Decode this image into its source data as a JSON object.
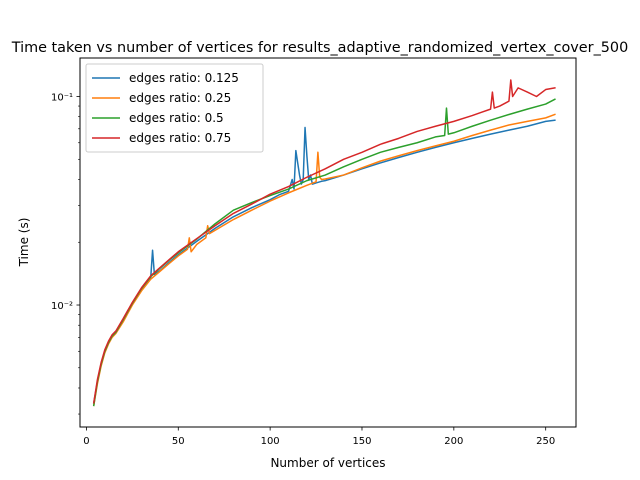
{
  "chart_data": {
    "type": "line",
    "title": "Time taken vs number of vertices for results_adaptive_randomized_vertex_cover_500",
    "xlabel": "Number of vertices",
    "ylabel": "Time (s)",
    "xlim": [
      -3.5,
      266.5
    ],
    "ylim": [
      0.0026,
      0.153
    ],
    "yscale": "log",
    "xticks": [
      0,
      50,
      100,
      150,
      200,
      250
    ],
    "xtick_labels": [
      "0",
      "50",
      "100",
      "150",
      "200",
      "250"
    ],
    "yticks_major": [
      0.01,
      0.1
    ],
    "ytick_labels": [
      "10⁻²",
      "10⁻¹"
    ],
    "yticks_minor": [
      0.003,
      0.004,
      0.005,
      0.006,
      0.007,
      0.008,
      0.009,
      0.02,
      0.03,
      0.04,
      0.05,
      0.06,
      0.07,
      0.08,
      0.09
    ],
    "grid": false,
    "legend_position": "upper left",
    "series": [
      {
        "name": "edges ratio: 0.125",
        "color": "#1f77b4",
        "x": [
          4,
          6,
          8,
          10,
          12,
          14,
          16,
          20,
          25,
          30,
          35,
          36,
          37,
          40,
          45,
          50,
          60,
          70,
          80,
          90,
          100,
          105,
          110,
          112,
          113,
          114,
          116,
          117,
          118,
          119,
          120,
          121,
          122,
          123,
          125,
          128,
          130,
          140,
          150,
          160,
          170,
          180,
          190,
          200,
          210,
          220,
          230,
          240,
          250,
          255
        ],
        "y": [
          0.0034,
          0.0043,
          0.0052,
          0.006,
          0.0066,
          0.0071,
          0.0074,
          0.0084,
          0.0101,
          0.0118,
          0.0135,
          0.0183,
          0.014,
          0.0146,
          0.016,
          0.0174,
          0.0202,
          0.0233,
          0.0265,
          0.0293,
          0.032,
          0.0338,
          0.0351,
          0.04,
          0.036,
          0.055,
          0.042,
          0.038,
          0.04,
          0.071,
          0.052,
          0.04,
          0.042,
          0.038,
          0.0385,
          0.0392,
          0.0395,
          0.042,
          0.045,
          0.048,
          0.051,
          0.054,
          0.057,
          0.06,
          0.063,
          0.066,
          0.069,
          0.072,
          0.076,
          0.077
        ]
      },
      {
        "name": "edges ratio: 0.25",
        "color": "#ff7f0e",
        "x": [
          4,
          6,
          8,
          10,
          12,
          14,
          16,
          20,
          25,
          30,
          35,
          40,
          45,
          50,
          55,
          56,
          57,
          60,
          65,
          66,
          67,
          70,
          80,
          90,
          100,
          110,
          120,
          125,
          126,
          127,
          128,
          130,
          140,
          150,
          160,
          170,
          180,
          190,
          200,
          210,
          220,
          230,
          240,
          250,
          255
        ],
        "y": [
          0.0033,
          0.0042,
          0.0051,
          0.0059,
          0.0065,
          0.007,
          0.0073,
          0.0083,
          0.01,
          0.0117,
          0.0133,
          0.0145,
          0.0158,
          0.0172,
          0.0185,
          0.021,
          0.018,
          0.0195,
          0.021,
          0.024,
          0.022,
          0.0228,
          0.0257,
          0.0285,
          0.0315,
          0.0345,
          0.0375,
          0.039,
          0.054,
          0.041,
          0.04,
          0.0402,
          0.042,
          0.0455,
          0.049,
          0.052,
          0.055,
          0.058,
          0.061,
          0.065,
          0.069,
          0.073,
          0.076,
          0.079,
          0.082
        ]
      },
      {
        "name": "edges ratio: 0.5",
        "color": "#2ca02c",
        "x": [
          4,
          6,
          8,
          10,
          12,
          14,
          16,
          20,
          25,
          30,
          35,
          40,
          45,
          50,
          60,
          70,
          80,
          90,
          100,
          110,
          120,
          130,
          140,
          150,
          160,
          170,
          180,
          190,
          195,
          196,
          197,
          200,
          210,
          220,
          230,
          240,
          250,
          255
        ],
        "y": [
          0.0033,
          0.0043,
          0.0052,
          0.006,
          0.0066,
          0.0071,
          0.0074,
          0.0085,
          0.0102,
          0.012,
          0.0137,
          0.015,
          0.0164,
          0.0178,
          0.0207,
          0.0245,
          0.0285,
          0.031,
          0.0335,
          0.036,
          0.0395,
          0.042,
          0.046,
          0.05,
          0.054,
          0.057,
          0.06,
          0.064,
          0.065,
          0.088,
          0.066,
          0.067,
          0.072,
          0.077,
          0.082,
          0.087,
          0.092,
          0.097
        ]
      },
      {
        "name": "edges ratio: 0.75",
        "color": "#d62728",
        "x": [
          4,
          6,
          8,
          10,
          12,
          14,
          16,
          20,
          25,
          30,
          35,
          40,
          45,
          50,
          60,
          70,
          80,
          90,
          100,
          110,
          120,
          130,
          140,
          150,
          160,
          170,
          180,
          190,
          200,
          210,
          215,
          220,
          221,
          222,
          225,
          230,
          231,
          232,
          235,
          240,
          245,
          250,
          255
        ],
        "y": [
          0.0034,
          0.0044,
          0.0053,
          0.0061,
          0.0067,
          0.0072,
          0.0075,
          0.0086,
          0.0103,
          0.0121,
          0.0138,
          0.0151,
          0.0165,
          0.018,
          0.0208,
          0.024,
          0.0275,
          0.0305,
          0.034,
          0.037,
          0.041,
          0.045,
          0.05,
          0.054,
          0.059,
          0.063,
          0.068,
          0.072,
          0.076,
          0.081,
          0.084,
          0.087,
          0.105,
          0.088,
          0.09,
          0.095,
          0.12,
          0.1,
          0.11,
          0.105,
          0.1,
          0.108,
          0.11
        ]
      }
    ]
  }
}
